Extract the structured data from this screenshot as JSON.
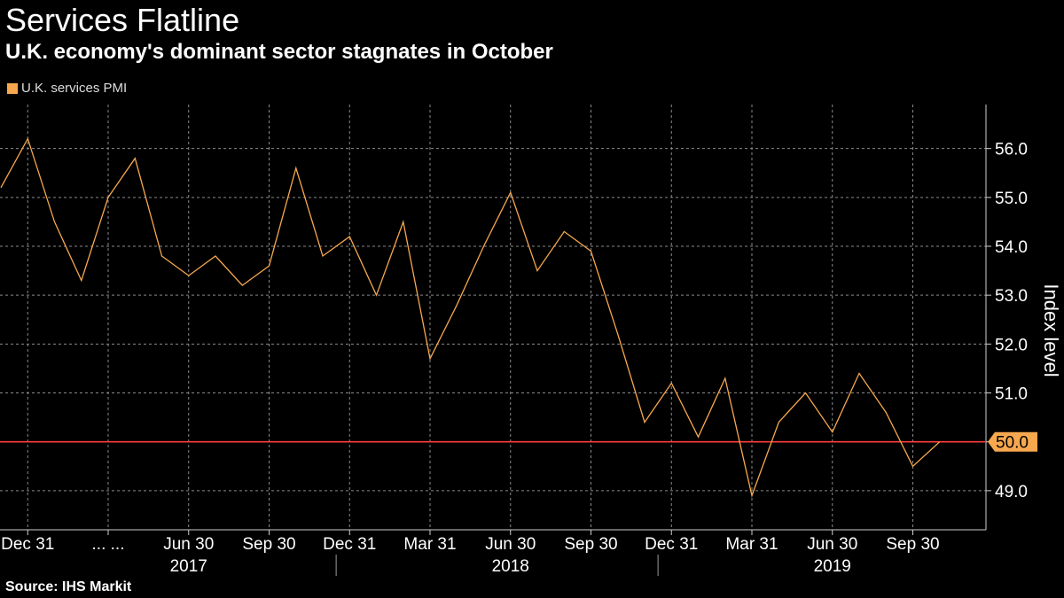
{
  "header": {
    "title": "Services Flatline",
    "subtitle": "U.K. economy's dominant sector stagnates in October"
  },
  "footer": {
    "source": "Source: IHS Markit"
  },
  "colors": {
    "series": "#f7a84f",
    "reference": "#ff3b3b",
    "grid": "#8a8a8a",
    "background": "#000000"
  },
  "chart_data": {
    "type": "line",
    "title": "Services Flatline",
    "subtitle": "U.K. economy's dominant sector stagnates in October",
    "ylabel": "Index level",
    "xlabel": "",
    "ylim": [
      48.2,
      56.9
    ],
    "yticks": [
      49.0,
      51.0,
      52.0,
      53.0,
      54.0,
      55.0,
      56.0
    ],
    "ytick_labels": [
      "49.0",
      "51.0",
      "52.0",
      "53.0",
      "54.0",
      "55.0",
      "56.0"
    ],
    "grid": true,
    "legend_position": "top-left",
    "series": [
      {
        "name": "U.K. services PMI",
        "x": [
          "2016-11",
          "2016-12",
          "2017-01",
          "2017-02",
          "2017-03",
          "2017-04",
          "2017-05",
          "2017-06",
          "2017-07",
          "2017-08",
          "2017-09",
          "2017-10",
          "2017-11",
          "2017-12",
          "2018-01",
          "2018-02",
          "2018-03",
          "2018-04",
          "2018-05",
          "2018-06",
          "2018-07",
          "2018-08",
          "2018-09",
          "2018-10",
          "2018-11",
          "2018-12",
          "2019-01",
          "2019-02",
          "2019-03",
          "2019-04",
          "2019-05",
          "2019-06",
          "2019-07",
          "2019-08",
          "2019-09",
          "2019-10"
        ],
        "values": [
          55.2,
          56.2,
          54.5,
          53.3,
          55.0,
          55.8,
          53.8,
          53.4,
          53.8,
          53.2,
          53.6,
          55.6,
          53.8,
          54.2,
          53.0,
          54.5,
          51.7,
          52.8,
          54.0,
          55.1,
          53.5,
          54.3,
          53.9,
          52.2,
          50.4,
          51.2,
          50.1,
          51.3,
          48.9,
          50.4,
          51.0,
          50.2,
          51.4,
          50.6,
          49.5,
          50.0
        ]
      }
    ],
    "reference_line": {
      "value": 50.0,
      "label": "50.0"
    },
    "x_tick_labels": [
      "Dec 31",
      "... ...",
      "Jun 30",
      "Sep 30",
      "Dec 31",
      "Mar 31",
      "Jun 30",
      "Sep 30",
      "Dec 31",
      "Mar 31",
      "Jun 30",
      "Sep 30"
    ],
    "x_tick_indices": [
      1,
      4,
      7,
      10,
      13,
      16,
      19,
      22,
      25,
      28,
      31,
      34
    ],
    "year_labels": [
      {
        "label": "2017",
        "center_index": 7
      },
      {
        "label": "2018",
        "center_index": 19
      },
      {
        "label": "2019",
        "center_index": 31
      }
    ],
    "year_dividers_index": [
      12.5,
      24.5
    ]
  }
}
